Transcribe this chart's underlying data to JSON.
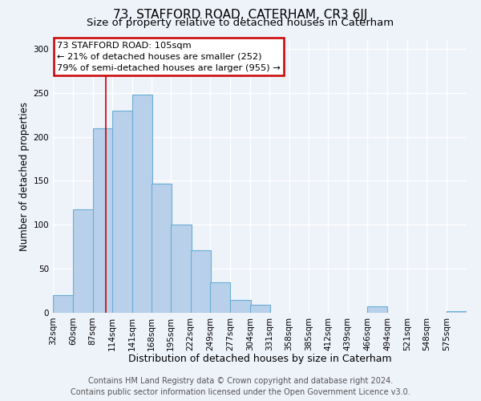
{
  "title": "73, STAFFORD ROAD, CATERHAM, CR3 6JJ",
  "subtitle": "Size of property relative to detached houses in Caterham",
  "xlabel": "Distribution of detached houses by size in Caterham",
  "ylabel": "Number of detached properties",
  "bin_labels": [
    "32sqm",
    "60sqm",
    "87sqm",
    "114sqm",
    "141sqm",
    "168sqm",
    "195sqm",
    "222sqm",
    "249sqm",
    "277sqm",
    "304sqm",
    "331sqm",
    "358sqm",
    "385sqm",
    "412sqm",
    "439sqm",
    "466sqm",
    "494sqm",
    "521sqm",
    "548sqm",
    "575sqm"
  ],
  "bin_edges": [
    32,
    60,
    87,
    114,
    141,
    168,
    195,
    222,
    249,
    277,
    304,
    331,
    358,
    385,
    412,
    439,
    466,
    494,
    521,
    548,
    575
  ],
  "bar_heights": [
    20,
    118,
    210,
    230,
    248,
    147,
    100,
    71,
    35,
    15,
    9,
    0,
    0,
    0,
    0,
    0,
    7,
    0,
    0,
    0,
    2
  ],
  "bar_color": "#b8d0ea",
  "bar_edge_color": "#6aaed6",
  "vline_x": 105,
  "vline_color": "#cc0000",
  "annotation_line1": "73 STAFFORD ROAD: 105sqm",
  "annotation_line2": "← 21% of detached houses are smaller (252)",
  "annotation_line3": "79% of semi-detached houses are larger (955) →",
  "annotation_box_color": "#cc0000",
  "ylim": [
    0,
    310
  ],
  "yticks": [
    0,
    50,
    100,
    150,
    200,
    250,
    300
  ],
  "background_color": "#eef2f9",
  "grid_color": "#ffffff",
  "title_fontsize": 11,
  "subtitle_fontsize": 9.5,
  "xlabel_fontsize": 9,
  "ylabel_fontsize": 8.5,
  "tick_fontsize": 7.5,
  "footer_fontsize": 7,
  "footer_line1": "Contains HM Land Registry data © Crown copyright and database right 2024.",
  "footer_line2": "Contains public sector information licensed under the Open Government Licence v3.0."
}
